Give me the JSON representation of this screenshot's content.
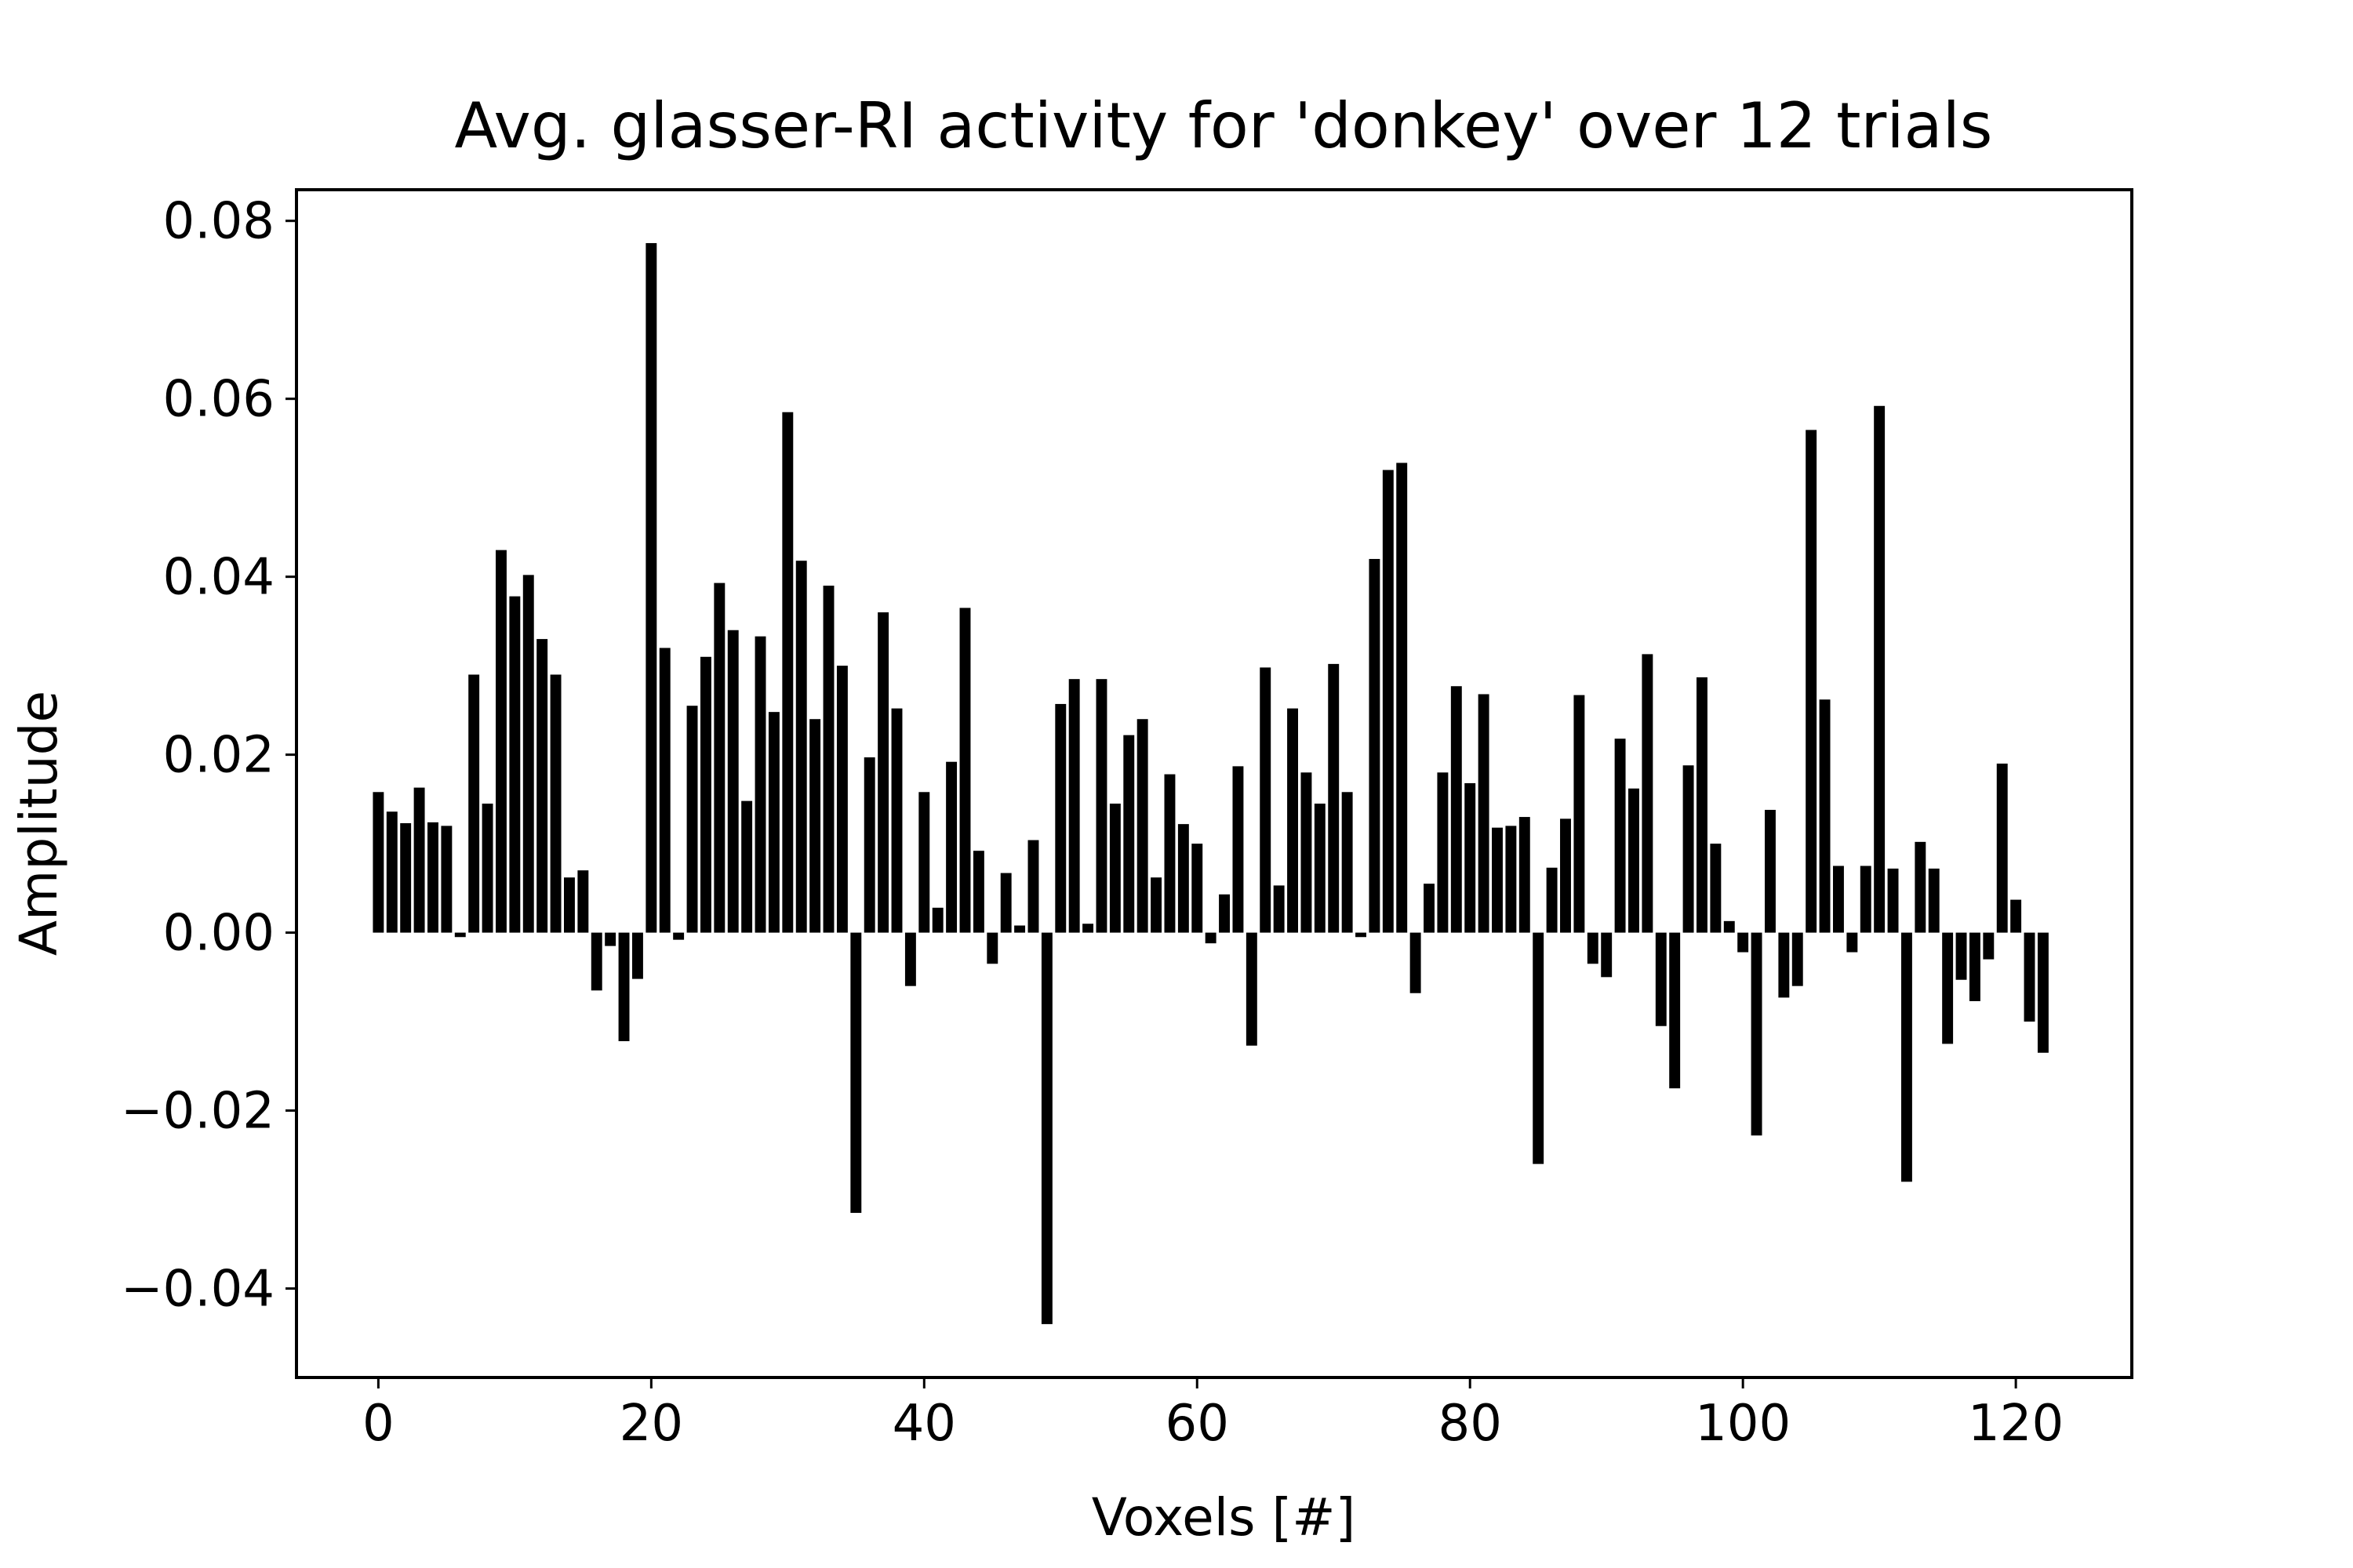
{
  "chart_data": {
    "type": "bar",
    "title": "Avg. glasser-RI activity for 'donkey' over 12 trials",
    "xlabel": "Voxels [#]",
    "ylabel": "Amplitude",
    "xlim": [
      -6,
      128.5
    ],
    "ylim": [
      -0.05,
      0.0835
    ],
    "xticks": [
      0,
      20,
      40,
      60,
      80,
      100,
      120
    ],
    "xtick_labels": [
      "0",
      "20",
      "40",
      "60",
      "80",
      "100",
      "120"
    ],
    "yticks": [
      -0.04,
      -0.02,
      0.0,
      0.02,
      0.04,
      0.06,
      0.08
    ],
    "ytick_labels": [
      "−0.04",
      "−0.02",
      "0.00",
      "0.02",
      "0.04",
      "0.06",
      "0.08"
    ],
    "grid": false,
    "bar_color": "#000000",
    "x": [
      0,
      1,
      2,
      3,
      4,
      5,
      6,
      7,
      8,
      9,
      10,
      11,
      12,
      13,
      14,
      15,
      16,
      17,
      18,
      19,
      20,
      21,
      22,
      23,
      24,
      25,
      26,
      27,
      28,
      29,
      30,
      31,
      32,
      33,
      34,
      35,
      36,
      37,
      38,
      39,
      40,
      41,
      42,
      43,
      44,
      45,
      46,
      47,
      48,
      49,
      50,
      51,
      52,
      53,
      54,
      55,
      56,
      57,
      58,
      59,
      60,
      61,
      62,
      63,
      64,
      65,
      66,
      67,
      68,
      69,
      70,
      71,
      72,
      73,
      74,
      75,
      76,
      77,
      78,
      79,
      80,
      81,
      82,
      83,
      84,
      85,
      86,
      87,
      88,
      89,
      90,
      91,
      92,
      93,
      94,
      95,
      96,
      97,
      98,
      99,
      100,
      101,
      102,
      103,
      104,
      105,
      106,
      107,
      108,
      109,
      110,
      111,
      112,
      113,
      114,
      115,
      116,
      117,
      118,
      119,
      120,
      121,
      122
    ],
    "values": [
      0.0158,
      0.0136,
      0.0123,
      0.0163,
      0.0124,
      0.012,
      -0.0005,
      0.029,
      0.0145,
      0.043,
      0.0378,
      0.0402,
      0.033,
      0.029,
      0.0062,
      0.007,
      -0.0065,
      -0.0015,
      -0.0122,
      -0.0052,
      0.0775,
      0.032,
      -0.0008,
      0.0255,
      0.031,
      0.0393,
      0.034,
      0.0148,
      0.0333,
      0.0248,
      0.0585,
      0.0418,
      0.024,
      0.039,
      0.03,
      -0.0315,
      0.0197,
      0.036,
      0.0252,
      -0.006,
      0.0158,
      0.0028,
      0.0192,
      0.0365,
      0.0092,
      -0.0035,
      0.0067,
      0.0008,
      0.0104,
      -0.044,
      0.0257,
      0.0285,
      0.001,
      0.0285,
      0.0145,
      0.0222,
      0.024,
      0.0062,
      0.0178,
      0.0122,
      0.01,
      -0.0012,
      0.0043,
      0.0187,
      -0.0127,
      0.0298,
      0.0053,
      0.0252,
      0.018,
      0.0145,
      0.0302,
      0.0158,
      -0.0005,
      0.042,
      0.052,
      0.0528,
      -0.0068,
      0.0055,
      0.018,
      0.0277,
      0.0168,
      0.0268,
      0.0118,
      0.012,
      0.013,
      -0.026,
      0.0073,
      0.0128,
      0.0267,
      -0.0035,
      -0.005,
      0.0218,
      0.0162,
      0.0313,
      -0.0105,
      -0.0175,
      0.0188,
      0.0287,
      0.01,
      0.0013,
      -0.0022,
      -0.0228,
      0.0138,
      -0.0073,
      -0.006,
      0.0565,
      0.0262,
      0.0075,
      -0.0022,
      0.0075,
      0.0592,
      0.0072,
      -0.028,
      0.0102,
      0.0072,
      -0.0125,
      -0.0053,
      -0.0077,
      -0.003,
      0.019,
      0.0037,
      -0.01,
      -0.0135
    ]
  }
}
